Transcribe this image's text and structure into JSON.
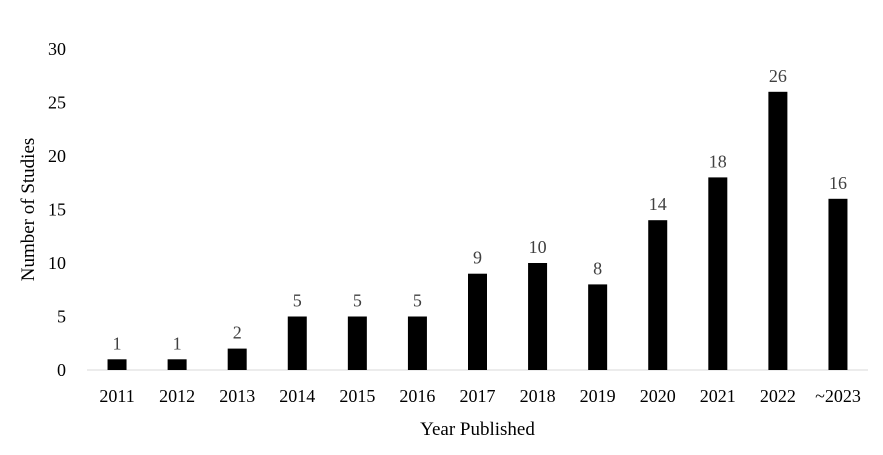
{
  "chart_data": {
    "type": "bar",
    "categories": [
      "2011",
      "2012",
      "2013",
      "2014",
      "2015",
      "2016",
      "2017",
      "2018",
      "2019",
      "2020",
      "2021",
      "2022",
      "~2023"
    ],
    "values": [
      1,
      1,
      2,
      5,
      5,
      5,
      9,
      10,
      8,
      14,
      18,
      26,
      16
    ],
    "data_labels": [
      "1",
      "1",
      "2",
      "5",
      "5",
      "5",
      "9",
      "10",
      "8",
      "14",
      "18",
      "26",
      "16"
    ],
    "xlabel": "Year Published",
    "ylabel": "Number of Studies",
    "ylim": [
      0,
      30
    ],
    "yticks": [
      "0",
      "5",
      "10",
      "15",
      "20",
      "25",
      "30"
    ],
    "grid": false,
    "legend": "none",
    "bar_color": "#000000",
    "data_label_color": "#404040"
  }
}
